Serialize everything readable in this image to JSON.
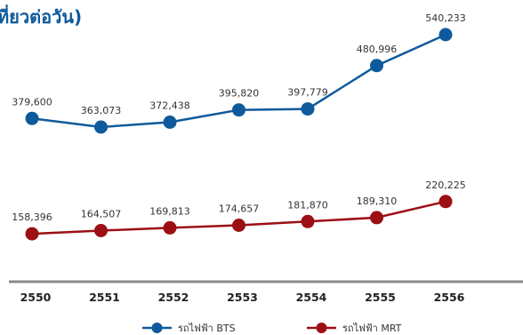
{
  "chart_data": {
    "type": "line",
    "title": "ที่ยวต่อวัน)",
    "categories": [
      "2550",
      "2551",
      "2552",
      "2553",
      "2554",
      "2555",
      "2556"
    ],
    "series": [
      {
        "name": "รถไฟฟ้า BTS",
        "color": "#0e5a9c",
        "values": [
          379600,
          363073,
          372438,
          395820,
          397779,
          480996,
          540233
        ],
        "labels": [
          "379,600",
          "363,073",
          "372,438",
          "395,820",
          "397,779",
          "480,996",
          "540,233"
        ]
      },
      {
        "name": "รถไฟฟ้า MRT",
        "color": "#9c0f14",
        "values": [
          158396,
          164507,
          169813,
          174657,
          181870,
          189310,
          220225
        ],
        "labels": [
          "158,396",
          "164,507",
          "169,813",
          "174,657",
          "181,870",
          "189,310",
          "220,225"
        ]
      }
    ],
    "legend_position": "bottom",
    "grid": false,
    "colors": {
      "title": "#0e5a9c",
      "axis_line": "#8a8a8a"
    }
  }
}
